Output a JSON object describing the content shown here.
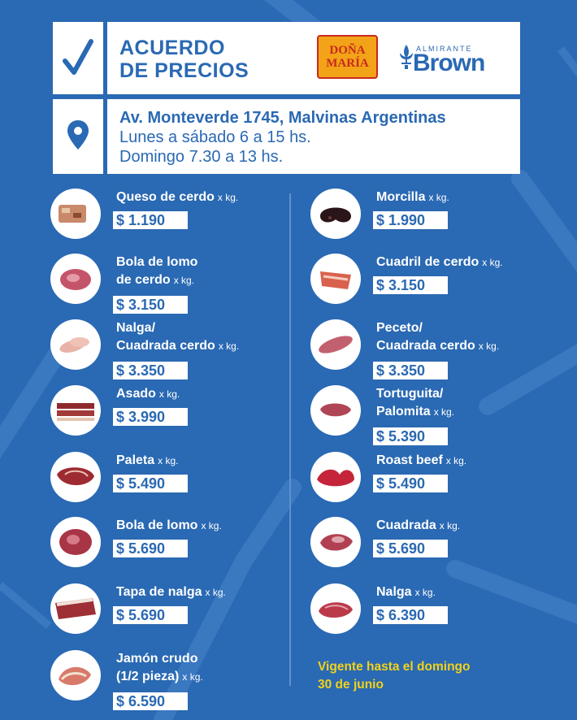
{
  "header": {
    "title_line1": "ACUERDO",
    "title_line2": "DE PRECIOS",
    "logo_donamaria_line1": "DOÑA",
    "logo_donamaria_line2": "MARÍA",
    "logo_brown_small": "ALMIRANTE",
    "logo_brown_big": "Brown",
    "address": "Av. Monteverde 1745, Malvinas Argentinas",
    "hours_weekday": "Lunes a sábado 6 a 15 hs.",
    "hours_sunday": "Domingo 7.30 a 13 hs."
  },
  "unit": "x kg.",
  "left_items": [
    {
      "name1": "Queso de cerdo",
      "name2": "",
      "price": "$ 1.190",
      "icon": "queso-de-cerdo-icon"
    },
    {
      "name1": "Bola de lomo",
      "name2": "de cerdo",
      "price": "$ 3.150",
      "icon": "bola-de-lomo-cerdo-icon"
    },
    {
      "name1": "Nalga/",
      "name2": "Cuadrada cerdo",
      "price": "$ 3.350",
      "icon": "nalga-cerdo-icon"
    },
    {
      "name1": "Asado",
      "name2": "",
      "price": "$ 3.990",
      "icon": "asado-icon"
    },
    {
      "name1": "Paleta",
      "name2": "",
      "price": "$ 5.490",
      "icon": "paleta-icon"
    },
    {
      "name1": "Bola de lomo",
      "name2": "",
      "price": "$ 5.690",
      "icon": "bola-de-lomo-icon"
    },
    {
      "name1": "Tapa de nalga",
      "name2": "",
      "price": "$ 5.690",
      "icon": "tapa-de-nalga-icon"
    },
    {
      "name1": "Jamón crudo",
      "name2": "(1/2 pieza)",
      "price": "$ 6.590",
      "icon": "jamon-crudo-icon"
    }
  ],
  "right_items": [
    {
      "name1": "Morcilla",
      "name2": "",
      "price": "$ 1.990",
      "icon": "morcilla-icon"
    },
    {
      "name1": "Cuadril de cerdo",
      "name2": "",
      "price": "$ 3.150",
      "icon": "cuadril-de-cerdo-icon"
    },
    {
      "name1": "Peceto/",
      "name2": "Cuadrada cerdo",
      "price": "$ 3.350",
      "icon": "peceto-icon"
    },
    {
      "name1": "Tortuguita/",
      "name2": "Palomita",
      "price": "$ 5.390",
      "icon": "tortuguita-icon"
    },
    {
      "name1": "Roast beef",
      "name2": "",
      "price": "$ 5.490",
      "icon": "roast-beef-icon"
    },
    {
      "name1": "Cuadrada",
      "name2": "",
      "price": "$ 5.690",
      "icon": "cuadrada-icon"
    },
    {
      "name1": "Nalga",
      "name2": "",
      "price": "$ 6.390",
      "icon": "nalga-icon"
    }
  ],
  "footer": {
    "vigente_line1": "Vigente hasta el domingo",
    "vigente_line2": "30 de junio"
  },
  "colors": {
    "background": "#2a69b3",
    "accent_yellow": "#f2d21a",
    "logo_orange": "#f3a317",
    "logo_red": "#c72a1f"
  }
}
